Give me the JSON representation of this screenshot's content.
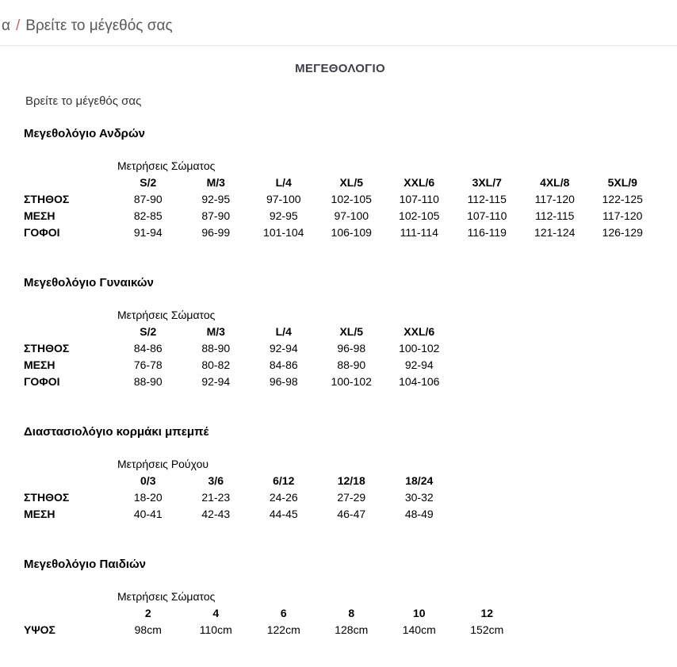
{
  "breadcrumb": {
    "prefix": "α",
    "separator": "/",
    "current": "Βρείτε το μέγεθός σας"
  },
  "page": {
    "title": "ΜΕΓΕΘΟΛΟΓΙΟ",
    "subtitle": "Βρείτε το μέγεθός σας"
  },
  "colors": {
    "breadcrumb_text": "#59595b",
    "breadcrumb_separator": "#ba6868",
    "title_text": "#3e3e48",
    "body_text": "#000000",
    "divider": "#e4e4e4"
  },
  "tables": [
    {
      "heading": "Μεγεθολόγιο Ανδρών",
      "measure_label": "Μετρήσεις Σώματος",
      "columns": [
        "S/2",
        "M/3",
        "L/4",
        "XL/5",
        "XXL/6",
        "3XL/7",
        "4XL/8",
        "5XL/9"
      ],
      "rows": [
        {
          "label": "ΣΤΗΘΟΣ",
          "values": [
            "87-90",
            "92-95",
            "97-100",
            "102-105",
            "107-110",
            "112-115",
            "117-120",
            "122-125"
          ]
        },
        {
          "label": "ΜΕΣΗ",
          "values": [
            "82-85",
            "87-90",
            "92-95",
            "97-100",
            "102-105",
            "107-110",
            "112-115",
            "117-120"
          ]
        },
        {
          "label": "ΓΟΦΟΙ",
          "values": [
            "91-94",
            "96-99",
            "101-104",
            "106-109",
            "111-114",
            "116-119",
            "121-124",
            "126-129"
          ]
        }
      ]
    },
    {
      "heading": "Μεγεθολόγιο Γυναικών",
      "measure_label": "Μετρήσεις Σώματος",
      "columns": [
        "S/2",
        "M/3",
        "L/4",
        "XL/5",
        "XXL/6"
      ],
      "rows": [
        {
          "label": "ΣΤΗΘΟΣ",
          "values": [
            "84-86",
            "88-90",
            "92-94",
            "96-98",
            "100-102"
          ]
        },
        {
          "label": "ΜΕΣΗ",
          "values": [
            "76-78",
            "80-82",
            "84-86",
            "88-90",
            "92-94"
          ]
        },
        {
          "label": "ΓΟΦΟΙ",
          "values": [
            "88-90",
            "92-94",
            "96-98",
            "100-102",
            "104-106"
          ]
        }
      ]
    },
    {
      "heading": "Διαστασιολόγιο κορμάκι μπεμπέ",
      "measure_label": "Μετρήσεις Ρούχου",
      "columns": [
        "0/3",
        "3/6",
        "6/12",
        "12/18",
        "18/24"
      ],
      "rows": [
        {
          "label": "ΣΤΗΘΟΣ",
          "values": [
            "18-20",
            "21-23",
            "24-26",
            "27-29",
            "30-32"
          ]
        },
        {
          "label": "ΜΕΣΗ",
          "values": [
            "40-41",
            "42-43",
            "44-45",
            "46-47",
            "48-49"
          ]
        }
      ]
    },
    {
      "heading": "Μεγεθολόγιο Παιδιών",
      "measure_label": "Μετρήσεις Σώματος",
      "columns": [
        "2",
        "4",
        "6",
        "8",
        "10",
        "12"
      ],
      "rows": [
        {
          "label": "ΥΨΟΣ",
          "values": [
            "98cm",
            "110cm",
            "122cm",
            "128cm",
            "140cm",
            "152cm"
          ]
        }
      ]
    }
  ]
}
